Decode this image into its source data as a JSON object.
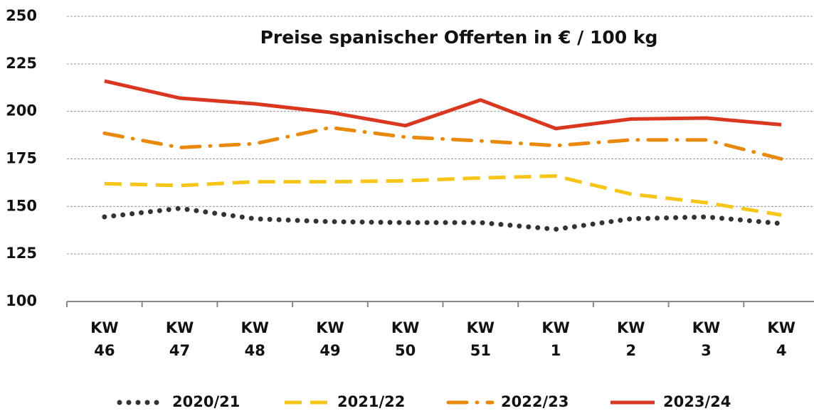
{
  "chart_data": {
    "type": "line",
    "title": "Preise spanischer Offerten in € / 100 kg",
    "categories": [
      "KW 46",
      "KW 47",
      "KW 48",
      "KW 49",
      "KW 50",
      "KW 51",
      "KW 1",
      "KW 2",
      "KW 3",
      "KW 4"
    ],
    "series": [
      {
        "name": "2020/21",
        "color": "#333333",
        "style": "dotted",
        "values": [
          144.5,
          149,
          143.5,
          142,
          141.5,
          141.5,
          138,
          143.5,
          144.5,
          141
        ]
      },
      {
        "name": "2021/22",
        "color": "#f5c518",
        "style": "dashed",
        "values": [
          162,
          161,
          163,
          163,
          163.5,
          165,
          166,
          156.5,
          152,
          145.5
        ]
      },
      {
        "name": "2022/23",
        "color": "#e8890c",
        "style": "dashdot",
        "values": [
          188.5,
          181,
          183,
          191.5,
          186.5,
          184.5,
          182,
          185,
          185,
          175
        ]
      },
      {
        "name": "2023/24",
        "color": "#d9371f",
        "style": "solid",
        "values": [
          216,
          207,
          204,
          199.5,
          192.5,
          206,
          191,
          196,
          196.5,
          193
        ]
      }
    ],
    "ylim": [
      100,
      250
    ],
    "yticks": [
      100,
      125,
      150,
      175,
      200,
      225,
      250
    ],
    "grid": true,
    "legend": "bottom"
  }
}
